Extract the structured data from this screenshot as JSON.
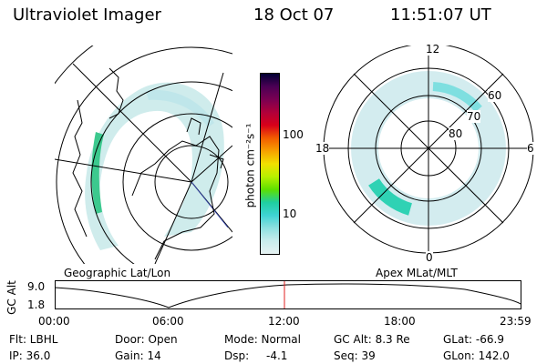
{
  "header": {
    "title": "Ultraviolet Imager",
    "date": "18 Oct 07",
    "time": "11:51:07 UT"
  },
  "geo_panel": {
    "label": "Geographic Lat/Lon"
  },
  "apex_panel": {
    "label": "Apex MLat/MLT",
    "mlt_labels": [
      "12",
      "18",
      "6",
      "0"
    ],
    "mlat_labels": [
      "60",
      "70",
      "80"
    ]
  },
  "colorbar": {
    "unit_label": "photon cm⁻²s⁻¹",
    "ticks": [
      "100",
      "10"
    ],
    "scale": "log",
    "colors": [
      "#000033",
      "#4b0055",
      "#7a0052",
      "#b0003a",
      "#d8001a",
      "#f25c00",
      "#f7a000",
      "#f2e000",
      "#b8f000",
      "#5ee000",
      "#1fcfa0",
      "#3fd3d3",
      "#8fe0e0",
      "#c9ecec",
      "#e6f2f2"
    ]
  },
  "altitude_plot": {
    "ylabel": "GC Alt",
    "yticks": [
      "9.0",
      "1.8"
    ],
    "xticks": [
      "00:00",
      "06:00",
      "12:00",
      "18:00",
      "23:59"
    ],
    "current_time_marker": "11:51"
  },
  "info": {
    "flt": "Flt: LBHL",
    "ip": "IP: 36.0",
    "door": "Door: Open",
    "gain": "Gain: 14",
    "mode": "Mode: Normal",
    "dsp_label": "Dsp:",
    "dsp_value": "-4.1",
    "gcalt": "GC Alt: 8.3 Re",
    "seq": "Seq: 39",
    "glat": "GLat: -66.9",
    "glon": "GLon: 142.0"
  }
}
